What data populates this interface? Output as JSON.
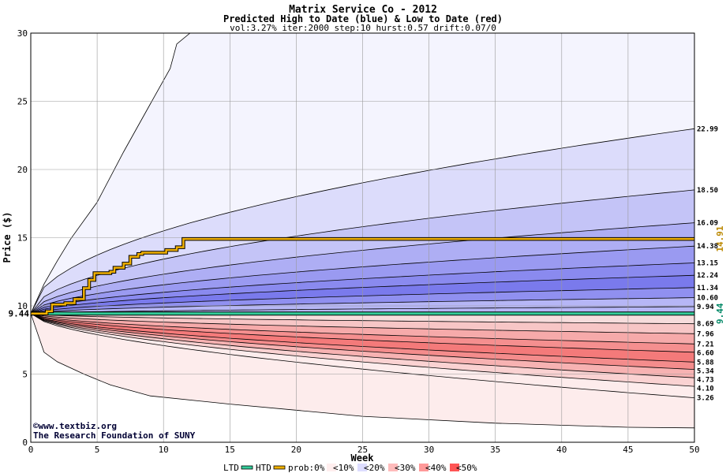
{
  "chart_data": {
    "type": "area",
    "title": "Matrix Service Co - 2012",
    "subtitle": "Predicted High to Date (blue) &  Low to Date (red)",
    "params": "vol:3.27% iter:2000 step:10 hurst:0.57 drift:0.07/0",
    "xlabel": "Week",
    "ylabel": "Price ($)",
    "xlim": [
      0,
      50
    ],
    "ylim": [
      0,
      30
    ],
    "x_ticks": [
      0,
      5,
      10,
      15,
      20,
      25,
      30,
      35,
      40,
      45,
      50
    ],
    "y_ticks": [
      0,
      5,
      10,
      15,
      20,
      25,
      30
    ],
    "grid": true,
    "start_price": 9.44,
    "start_price_label": "9.44",
    "htd_end_label": "14.91",
    "high_quantile_end_labels": [
      "22.99",
      "18.50",
      "16.09",
      "14.38",
      "13.15",
      "12.24",
      "11.34",
      "10.60",
      "9.94"
    ],
    "low_quantile_end_labels": [
      "8.69",
      "7.96",
      "7.21",
      "6.60",
      "5.88",
      "5.34",
      "4.73",
      "4.10",
      "3.26"
    ],
    "high_quantile_end_values": [
      22.99,
      18.5,
      16.09,
      14.38,
      13.15,
      12.24,
      11.34,
      10.6,
      9.94
    ],
    "low_quantile_end_values": [
      8.69,
      7.96,
      7.21,
      6.6,
      5.88,
      5.34,
      4.73,
      4.1,
      3.26
    ],
    "outer_high_curve": [
      [
        0,
        9.44
      ],
      [
        1,
        11.6
      ],
      [
        2,
        13.3
      ],
      [
        3,
        14.9
      ],
      [
        5,
        17.6
      ],
      [
        7,
        21.3
      ],
      [
        9,
        24.8
      ],
      [
        10.5,
        27.4
      ],
      [
        11,
        29.2
      ],
      [
        12,
        30
      ]
    ],
    "outer_low_curve": [
      [
        0,
        9.44
      ],
      [
        1,
        6.6
      ],
      [
        2,
        5.9
      ],
      [
        4,
        5.0
      ],
      [
        6,
        4.2
      ],
      [
        9,
        3.4
      ],
      [
        15,
        2.8
      ],
      [
        25,
        1.9
      ],
      [
        35,
        1.4
      ],
      [
        45,
        1.1
      ],
      [
        50,
        1.05
      ]
    ],
    "htd_series": [
      [
        0,
        9.44
      ],
      [
        0.5,
        9.44
      ],
      [
        1.2,
        9.6
      ],
      [
        1.6,
        10.1
      ],
      [
        2.6,
        10.2
      ],
      [
        3.3,
        10.5
      ],
      [
        4.0,
        11.3
      ],
      [
        4.4,
        11.9
      ],
      [
        4.8,
        12.4
      ],
      [
        6.0,
        12.5
      ],
      [
        6.3,
        12.8
      ],
      [
        7.0,
        13.1
      ],
      [
        7.5,
        13.6
      ],
      [
        8.1,
        13.8
      ],
      [
        8.4,
        13.9
      ],
      [
        10.0,
        13.9
      ],
      [
        10.2,
        14.1
      ],
      [
        11.0,
        14.3
      ],
      [
        11.5,
        14.3
      ],
      [
        11.5,
        14.91
      ],
      [
        50,
        14.91
      ]
    ],
    "ltd_series": [
      [
        0,
        9.44
      ],
      [
        50,
        9.44
      ]
    ],
    "colors": {
      "blue_bands": [
        "#f4f4fe",
        "#dcdcfb",
        "#c4c4f7",
        "#aeaef4",
        "#9a9af1",
        "#8a8aef",
        "#7a7aec",
        "#9090f0",
        "#b6b6f6"
      ],
      "red_bands": [
        "#f6dcdc",
        "#f7c6c6",
        "#f6aaaa",
        "#f58f8f",
        "#f47a7a",
        "#f48c8c",
        "#f7b2b2",
        "#fad2d2",
        "#fdecec"
      ],
      "htd": "#f0b000",
      "ltd": "#33cc99",
      "start_label": "#008866",
      "htd_label": "#bb8800"
    },
    "legend": {
      "position": "bottom",
      "items": [
        {
          "label": "LTD",
          "color": "#33cc99",
          "kind": "line"
        },
        {
          "label": "HTD",
          "color": "#f0b000",
          "kind": "line"
        },
        {
          "label": "prob:0%",
          "color": "",
          "kind": "text"
        },
        {
          "label": "<10%",
          "color": "#ffeeee",
          "kind": "swatch"
        },
        {
          "label": "<20%",
          "color": "#ddddff",
          "kind": "swatch"
        },
        {
          "label": "<30%",
          "color": "#ffbbbb",
          "kind": "swatch"
        },
        {
          "label": "<40%",
          "color": "#ff9999",
          "kind": "swatch"
        },
        {
          "label": "<50%",
          "color": "#ff5555",
          "kind": "swatch"
        }
      ]
    }
  },
  "credits": {
    "site": "©www.textbiz.org",
    "org": "The Research Foundation of SUNY"
  }
}
